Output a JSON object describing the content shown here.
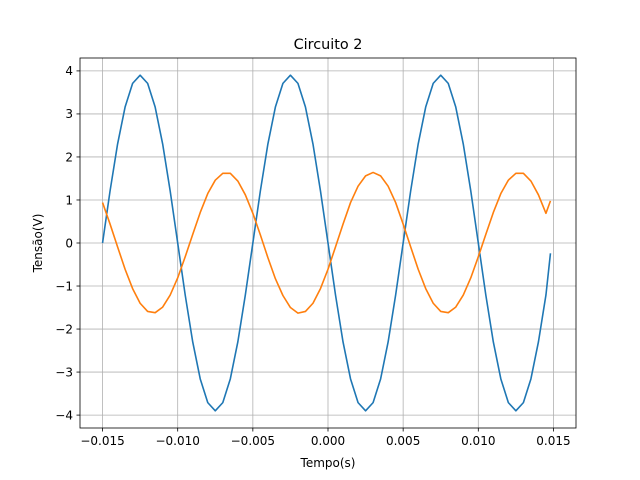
{
  "chart_data": {
    "type": "line",
    "title": "Circuito 2",
    "xlabel": "Tempo(s)",
    "ylabel": "Tensão(V)",
    "xlim": [
      -0.0165,
      0.0165
    ],
    "ylim": [
      -4.3,
      4.3
    ],
    "grid": true,
    "x_ticks": [
      -0.015,
      -0.01,
      -0.005,
      0.0,
      0.005,
      0.01,
      0.015
    ],
    "x_tick_labels": [
      "−0.015",
      "−0.010",
      "−0.005",
      "0.000",
      "0.005",
      "0.010",
      "0.015"
    ],
    "y_ticks": [
      -4,
      -3,
      -2,
      -1,
      0,
      1,
      2,
      3,
      4
    ],
    "y_tick_labels": [
      "−4",
      "−3",
      "−2",
      "−1",
      "0",
      "1",
      "2",
      "3",
      "4"
    ],
    "x_range": [
      -0.015,
      0.0148
    ],
    "series": [
      {
        "color": "#1f77b4",
        "points": [
          [
            -0.015,
            0.0
          ],
          [
            -0.0145,
            1.21
          ],
          [
            -0.014,
            2.3
          ],
          [
            -0.0135,
            3.16
          ],
          [
            -0.013,
            3.71
          ],
          [
            -0.0125,
            3.9
          ],
          [
            -0.012,
            3.71
          ],
          [
            -0.0115,
            3.16
          ],
          [
            -0.011,
            2.3
          ],
          [
            -0.0105,
            1.21
          ],
          [
            -0.01,
            0.0
          ],
          [
            -0.0095,
            -1.21
          ],
          [
            -0.009,
            -2.3
          ],
          [
            -0.0085,
            -3.16
          ],
          [
            -0.008,
            -3.71
          ],
          [
            -0.0075,
            -3.9
          ],
          [
            -0.007,
            -3.71
          ],
          [
            -0.0065,
            -3.16
          ],
          [
            -0.006,
            -2.3
          ],
          [
            -0.0055,
            -1.21
          ],
          [
            -0.005,
            0.0
          ],
          [
            -0.0045,
            1.21
          ],
          [
            -0.004,
            2.3
          ],
          [
            -0.0035,
            3.16
          ],
          [
            -0.003,
            3.71
          ],
          [
            -0.0025,
            3.9
          ],
          [
            -0.002,
            3.71
          ],
          [
            -0.0015,
            3.16
          ],
          [
            -0.001,
            2.3
          ],
          [
            -0.0005,
            1.21
          ],
          [
            0.0,
            0.0
          ],
          [
            0.0005,
            -1.21
          ],
          [
            0.001,
            -2.3
          ],
          [
            0.0015,
            -3.16
          ],
          [
            0.002,
            -3.71
          ],
          [
            0.0025,
            -3.9
          ],
          [
            0.003,
            -3.71
          ],
          [
            0.0035,
            -3.16
          ],
          [
            0.004,
            -2.3
          ],
          [
            0.0045,
            -1.21
          ],
          [
            0.005,
            0.0
          ],
          [
            0.0055,
            1.21
          ],
          [
            0.006,
            2.3
          ],
          [
            0.0065,
            3.16
          ],
          [
            0.007,
            3.71
          ],
          [
            0.0075,
            3.9
          ],
          [
            0.008,
            3.71
          ],
          [
            0.0085,
            3.16
          ],
          [
            0.009,
            2.3
          ],
          [
            0.0095,
            1.21
          ],
          [
            0.01,
            0.0
          ],
          [
            0.0105,
            -1.21
          ],
          [
            0.011,
            -2.3
          ],
          [
            0.0115,
            -3.16
          ],
          [
            0.012,
            -3.71
          ],
          [
            0.0125,
            -3.9
          ],
          [
            0.013,
            -3.71
          ],
          [
            0.0135,
            -3.16
          ],
          [
            0.014,
            -2.3
          ],
          [
            0.0145,
            -1.21
          ],
          [
            0.0148,
            -0.24
          ]
        ]
      },
      {
        "color": "#ff7f0e",
        "points": [
          [
            -0.015,
            0.94
          ],
          [
            -0.0145,
            0.44
          ],
          [
            -0.014,
            -0.09
          ],
          [
            -0.0135,
            -0.61
          ],
          [
            -0.013,
            -1.06
          ],
          [
            -0.0125,
            -1.4
          ],
          [
            -0.012,
            -1.59
          ],
          [
            -0.0115,
            -1.62
          ],
          [
            -0.011,
            -1.49
          ],
          [
            -0.0105,
            -1.21
          ],
          [
            -0.01,
            -0.81
          ],
          [
            -0.0095,
            -0.32
          ],
          [
            -0.009,
            0.2
          ],
          [
            -0.0085,
            0.71
          ],
          [
            -0.008,
            1.15
          ],
          [
            -0.0075,
            1.46
          ],
          [
            -0.007,
            1.62
          ],
          [
            -0.0065,
            1.62
          ],
          [
            -0.006,
            1.44
          ],
          [
            -0.0055,
            1.12
          ],
          [
            -0.005,
            0.69
          ],
          [
            -0.0045,
            0.19
          ],
          [
            -0.004,
            -0.34
          ],
          [
            -0.0035,
            -0.83
          ],
          [
            -0.003,
            -1.22
          ],
          [
            -0.0025,
            -1.5
          ],
          [
            -0.002,
            -1.63
          ],
          [
            -0.0015,
            -1.59
          ],
          [
            -0.001,
            -1.4
          ],
          [
            -0.0005,
            -1.06
          ],
          [
            0.0,
            -0.61
          ],
          [
            0.0005,
            -0.09
          ],
          [
            0.001,
            0.44
          ],
          [
            0.0015,
            0.94
          ],
          [
            0.002,
            1.32
          ],
          [
            0.0025,
            1.56
          ],
          [
            0.003,
            1.64
          ],
          [
            0.0035,
            1.56
          ],
          [
            0.004,
            1.32
          ],
          [
            0.0045,
            0.94
          ],
          [
            0.005,
            0.44
          ],
          [
            0.0055,
            -0.09
          ],
          [
            0.006,
            -0.61
          ],
          [
            0.0065,
            -1.06
          ],
          [
            0.007,
            -1.4
          ],
          [
            0.0075,
            -1.59
          ],
          [
            0.008,
            -1.62
          ],
          [
            0.0085,
            -1.49
          ],
          [
            0.009,
            -1.21
          ],
          [
            0.0095,
            -0.81
          ],
          [
            0.01,
            -0.32
          ],
          [
            0.0105,
            0.2
          ],
          [
            0.011,
            0.71
          ],
          [
            0.0115,
            1.15
          ],
          [
            0.012,
            1.46
          ],
          [
            0.0125,
            1.62
          ],
          [
            0.013,
            1.62
          ],
          [
            0.0135,
            1.44
          ],
          [
            0.014,
            1.12
          ],
          [
            0.0145,
            0.69
          ],
          [
            0.0148,
            0.98
          ]
        ]
      }
    ]
  }
}
